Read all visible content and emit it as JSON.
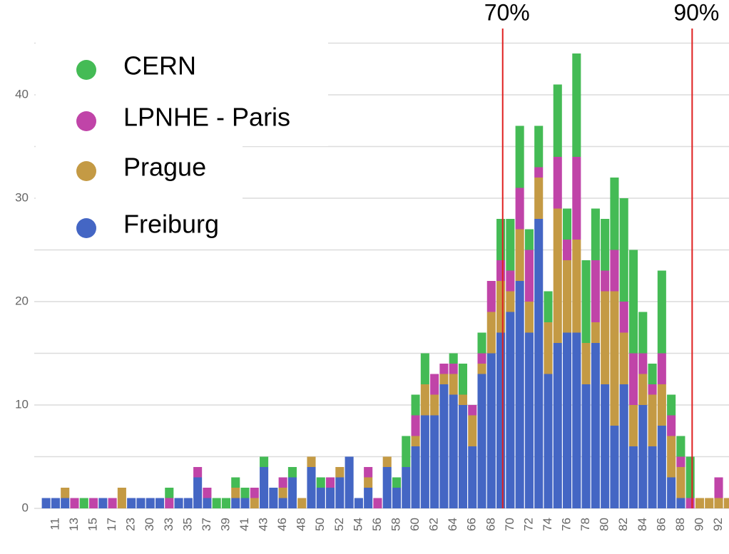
{
  "chart_data": {
    "type": "stacked_bar",
    "categories": [
      null,
      "11",
      null,
      "13",
      null,
      "15",
      null,
      "17",
      null,
      "23",
      null,
      "30",
      null,
      "33",
      null,
      "35",
      null,
      "37",
      null,
      "39",
      null,
      "41",
      null,
      "43",
      null,
      "46",
      null,
      "48",
      null,
      "50",
      null,
      "52",
      null,
      "54",
      null,
      "56",
      null,
      "58",
      null,
      "60",
      null,
      "62",
      null,
      "64",
      null,
      "66",
      null,
      "68",
      null,
      "70",
      null,
      "72",
      null,
      "74",
      null,
      "76",
      null,
      "78",
      null,
      "80",
      null,
      "82",
      null,
      "84",
      null,
      "86",
      null,
      "88",
      null,
      "90",
      null,
      "92",
      null
    ],
    "series": [
      {
        "name": "Freiburg",
        "color": "#4466c4",
        "values": [
          1,
          1,
          1,
          0,
          0,
          0,
          1,
          0,
          0,
          1,
          1,
          1,
          1,
          0,
          1,
          1,
          3,
          1,
          0,
          0,
          1,
          1,
          0,
          4,
          2,
          1,
          3,
          0,
          4,
          2,
          2,
          3,
          5,
          1,
          2,
          0,
          4,
          2,
          4,
          6,
          9,
          9,
          12,
          11,
          10,
          6,
          13,
          15,
          17,
          19,
          22,
          17,
          28,
          13,
          16,
          17,
          17,
          12,
          16,
          12,
          8,
          12,
          6,
          10,
          6,
          8,
          3,
          1,
          0,
          0,
          0,
          0,
          0
        ]
      },
      {
        "name": "Prague",
        "color": "#c49a44",
        "values": [
          0,
          0,
          1,
          0,
          0,
          0,
          0,
          0,
          2,
          0,
          0,
          0,
          0,
          0,
          0,
          0,
          0,
          0,
          0,
          0,
          1,
          0,
          1,
          0,
          0,
          1,
          0,
          1,
          1,
          0,
          0,
          1,
          0,
          0,
          1,
          0,
          1,
          0,
          0,
          1,
          3,
          2,
          1,
          2,
          1,
          3,
          1,
          4,
          5,
          2,
          5,
          3,
          4,
          5,
          13,
          7,
          9,
          4,
          2,
          9,
          13,
          5,
          4,
          3,
          5,
          4,
          4,
          3,
          0,
          1,
          1,
          1,
          1
        ]
      },
      {
        "name": "LPNHE - Paris",
        "color": "#c044a8",
        "values": [
          0,
          0,
          0,
          1,
          0,
          1,
          0,
          1,
          0,
          0,
          0,
          0,
          0,
          1,
          0,
          0,
          1,
          1,
          0,
          0,
          0,
          0,
          1,
          0,
          0,
          1,
          0,
          0,
          0,
          0,
          1,
          0,
          0,
          0,
          1,
          1,
          0,
          0,
          0,
          2,
          0,
          2,
          1,
          1,
          0,
          1,
          1,
          3,
          2,
          2,
          4,
          5,
          1,
          0,
          5,
          2,
          8,
          0,
          6,
          2,
          4,
          3,
          5,
          2,
          1,
          3,
          2,
          1,
          1,
          0,
          0,
          2,
          0
        ]
      },
      {
        "name": "CERN",
        "color": "#44bb55",
        "values": [
          0,
          0,
          0,
          0,
          1,
          0,
          0,
          0,
          0,
          0,
          0,
          0,
          0,
          1,
          0,
          0,
          0,
          0,
          1,
          1,
          1,
          1,
          0,
          1,
          0,
          0,
          1,
          0,
          0,
          1,
          0,
          0,
          0,
          0,
          0,
          0,
          0,
          1,
          3,
          2,
          3,
          0,
          0,
          1,
          3,
          0,
          2,
          0,
          4,
          5,
          6,
          2,
          4,
          3,
          7,
          3,
          10,
          8,
          5,
          5,
          7,
          10,
          10,
          4,
          2,
          8,
          2,
          2,
          4,
          0,
          0,
          0,
          0
        ]
      }
    ],
    "ylim": [
      0,
      45
    ],
    "yticks": [
      0,
      10,
      20,
      30,
      40
    ],
    "ygrid": [
      0,
      5,
      10,
      15,
      20,
      25,
      30,
      35,
      40,
      45
    ],
    "legend": "top-left",
    "markers": [
      {
        "label": "70%",
        "x": 48.2,
        "color": "#e02020"
      },
      {
        "label": "90%",
        "x": 68.2,
        "color": "#e02020"
      }
    ]
  }
}
